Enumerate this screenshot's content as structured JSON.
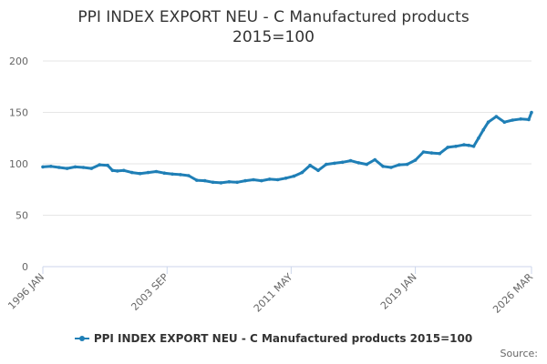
{
  "colors": {
    "series": "#1f7fb6",
    "grid": "#e6e6e6",
    "axis": "#ccd6eb",
    "label": "#666666"
  },
  "title_line1": "PPI INDEX EXPORT NEU - C Manufactured products",
  "title_line2": "2015=100",
  "source": "Source:",
  "chart_data": {
    "type": "line",
    "title": "PPI INDEX EXPORT NEU - C Manufactured products 2015=100",
    "xlabel": "",
    "ylabel": "",
    "ylim": [
      0,
      200
    ],
    "yticks": [
      0,
      50,
      100,
      150,
      200
    ],
    "x_range": [
      1996.0,
      2026.17
    ],
    "xticks": [
      {
        "label": "1996 JAN",
        "value": 1996.0
      },
      {
        "label": "2003 SEP",
        "value": 2003.67
      },
      {
        "label": "2011 MAY",
        "value": 2011.33
      },
      {
        "label": "2019 JAN",
        "value": 2019.0
      },
      {
        "label": "2026 MAR",
        "value": 2026.17
      }
    ],
    "legend": "bottom-center",
    "series": [
      {
        "name": "PPI INDEX EXPORT NEU - C Manufactured products 2015=100",
        "x": [
          1996.0,
          1996.5,
          1997.0,
          1997.5,
          1998.0,
          1998.5,
          1999.0,
          1999.5,
          2000.0,
          2000.3,
          2000.6,
          2001.0,
          2001.5,
          2002.0,
          2002.5,
          2003.0,
          2003.5,
          2004.0,
          2004.5,
          2005.0,
          2005.5,
          2006.0,
          2006.5,
          2007.0,
          2007.5,
          2008.0,
          2008.5,
          2009.0,
          2009.5,
          2010.0,
          2010.5,
          2011.0,
          2011.5,
          2012.0,
          2012.5,
          2013.0,
          2013.5,
          2014.0,
          2014.5,
          2015.0,
          2015.5,
          2016.0,
          2016.5,
          2017.0,
          2017.5,
          2018.0,
          2018.5,
          2019.0,
          2019.5,
          2020.0,
          2020.5,
          2021.0,
          2021.5,
          2022.0,
          2022.3,
          2022.6,
          2022.9,
          2023.2,
          2023.5,
          2024.0,
          2024.5,
          2025.0,
          2025.5,
          2026.0,
          2026.17
        ],
        "values": [
          97,
          97.5,
          96.5,
          95.5,
          97,
          96.5,
          95.5,
          99,
          98.5,
          93.5,
          93,
          93.5,
          91.5,
          90.5,
          91.5,
          92.5,
          91,
          90,
          89.5,
          88.5,
          84,
          83.5,
          82,
          81.5,
          82.5,
          82,
          83.5,
          84.5,
          83.5,
          85,
          84.5,
          86,
          88,
          91.5,
          98.5,
          93.5,
          99.5,
          100.5,
          101.5,
          103,
          101,
          99.5,
          104,
          97.5,
          96.5,
          99,
          99.5,
          103.5,
          111.5,
          110.5,
          110,
          116,
          117,
          118.5,
          118,
          117,
          125,
          133,
          140.5,
          146,
          140.5,
          142.5,
          143.5,
          143,
          150
        ]
      }
    ]
  }
}
